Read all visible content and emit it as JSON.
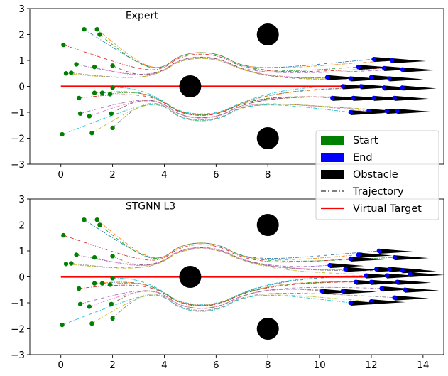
{
  "chart_data": [
    {
      "type": "scatter",
      "title": "",
      "annotation": "Expert",
      "xlabel": "",
      "ylabel": "",
      "xlim": [
        -1.2,
        14.8
      ],
      "ylim": [
        -3,
        3
      ],
      "xticks": [
        "0",
        "2",
        "4",
        "6",
        "8"
      ],
      "yticks": [
        "3",
        "2",
        "1",
        "0",
        "−1",
        "−2",
        "−3"
      ],
      "grid": false,
      "legend_placement": "bottom-right",
      "obstacles": [
        [
          8,
          2
        ],
        [
          5,
          0
        ],
        [
          8,
          -2
        ]
      ],
      "virtual_target": {
        "x": [
          0,
          12
        ],
        "y": [
          0,
          0
        ]
      },
      "start_points": [
        [
          0.9,
          2.2
        ],
        [
          1.4,
          2.2
        ],
        [
          1.5,
          2.0
        ],
        [
          0.1,
          1.6
        ],
        [
          0.6,
          0.85
        ],
        [
          1.3,
          0.75
        ],
        [
          2.0,
          0.8
        ],
        [
          0.2,
          0.5
        ],
        [
          0.4,
          0.52
        ],
        [
          1.6,
          -0.25
        ],
        [
          1.9,
          -0.3
        ],
        [
          2.0,
          -0.05
        ],
        [
          1.3,
          -0.25
        ],
        [
          0.7,
          -0.45
        ],
        [
          0.75,
          -1.05
        ],
        [
          1.1,
          -1.15
        ],
        [
          1.95,
          -1.05
        ],
        [
          0.05,
          -1.85
        ],
        [
          1.2,
          -1.8
        ],
        [
          2.0,
          -1.6
        ]
      ],
      "end_points": [
        [
          12.1,
          1.05
        ],
        [
          12.8,
          1.0
        ],
        [
          11.5,
          0.75
        ],
        [
          12.5,
          0.7
        ],
        [
          13.2,
          0.65
        ],
        [
          10.3,
          0.35
        ],
        [
          11.2,
          0.3
        ],
        [
          12.0,
          0.35
        ],
        [
          12.7,
          0.3
        ],
        [
          10.9,
          0.0
        ],
        [
          11.6,
          0.0
        ],
        [
          12.5,
          -0.05
        ],
        [
          13.2,
          -0.05
        ],
        [
          10.5,
          -0.45
        ],
        [
          11.3,
          -0.45
        ],
        [
          12.1,
          -0.45
        ],
        [
          12.9,
          -0.45
        ],
        [
          11.9,
          -0.95
        ],
        [
          12.6,
          -0.95
        ],
        [
          11.2,
          -1.0
        ],
        [
          13.0,
          -0.95
        ]
      ]
    },
    {
      "type": "scatter",
      "title": "",
      "annotation": "STGNN L3",
      "xlabel": "",
      "ylabel": "",
      "xlim": [
        -1.2,
        14.8
      ],
      "ylim": [
        -3,
        3
      ],
      "xticks": [
        "0",
        "2",
        "4",
        "6",
        "8",
        "10",
        "12",
        "14"
      ],
      "yticks": [
        "3",
        "2",
        "1",
        "0",
        "−1",
        "−2",
        "−3"
      ],
      "grid": false,
      "obstacles": [
        [
          8,
          2
        ],
        [
          5,
          0
        ],
        [
          8,
          -2
        ]
      ],
      "virtual_target": {
        "x": [
          0,
          12
        ],
        "y": [
          0,
          0
        ]
      },
      "start_points": [
        [
          0.9,
          2.2
        ],
        [
          1.4,
          2.2
        ],
        [
          1.5,
          2.0
        ],
        [
          0.1,
          1.6
        ],
        [
          0.6,
          0.85
        ],
        [
          1.3,
          0.75
        ],
        [
          2.0,
          0.8
        ],
        [
          0.2,
          0.5
        ],
        [
          0.4,
          0.52
        ],
        [
          1.6,
          -0.25
        ],
        [
          1.9,
          -0.3
        ],
        [
          2.0,
          -0.05
        ],
        [
          1.3,
          -0.25
        ],
        [
          0.7,
          -0.45
        ],
        [
          0.75,
          -1.05
        ],
        [
          1.1,
          -1.15
        ],
        [
          1.95,
          -1.05
        ],
        [
          0.05,
          -1.85
        ],
        [
          1.2,
          -1.8
        ],
        [
          2.0,
          -1.6
        ]
      ],
      "end_points": [
        [
          12.3,
          1.0
        ],
        [
          11.5,
          0.85
        ],
        [
          12.9,
          0.75
        ],
        [
          11.2,
          0.7
        ],
        [
          10.4,
          0.45
        ],
        [
          11.0,
          0.3
        ],
        [
          12.2,
          0.3
        ],
        [
          12.7,
          0.3
        ],
        [
          13.2,
          0.25
        ],
        [
          11.8,
          0.05
        ],
        [
          12.6,
          0.05
        ],
        [
          13.5,
          0.1
        ],
        [
          11.4,
          -0.2
        ],
        [
          12.0,
          -0.2
        ],
        [
          13.0,
          -0.2
        ],
        [
          12.4,
          -0.45
        ],
        [
          13.3,
          -0.5
        ],
        [
          10.1,
          -0.55
        ],
        [
          10.9,
          -0.55
        ],
        [
          12.0,
          -0.95
        ],
        [
          12.9,
          -0.8
        ],
        [
          11.2,
          -1.0
        ]
      ]
    }
  ],
  "legend": {
    "entries": [
      {
        "label": "Start",
        "kind": "patch",
        "color": "#008000"
      },
      {
        "label": "End",
        "kind": "patch",
        "color": "#0000ff"
      },
      {
        "label": "Obstacle",
        "kind": "patch",
        "color": "#000000"
      },
      {
        "label": "Trajectory",
        "kind": "dashdot",
        "color": "#808080"
      },
      {
        "label": "Virtual Target",
        "kind": "line",
        "color": "#ff0000"
      }
    ]
  },
  "colors": {
    "start": "#008000",
    "end": "#0000ff",
    "obstacle": "#000000",
    "target": "#ff0000",
    "trajectory_palette": [
      "#1f77b4",
      "#ff7f0e",
      "#2ca02c",
      "#d62728",
      "#9467bd",
      "#8c564b",
      "#e377c2",
      "#7f7f7f",
      "#bcbd22",
      "#17becf"
    ]
  }
}
